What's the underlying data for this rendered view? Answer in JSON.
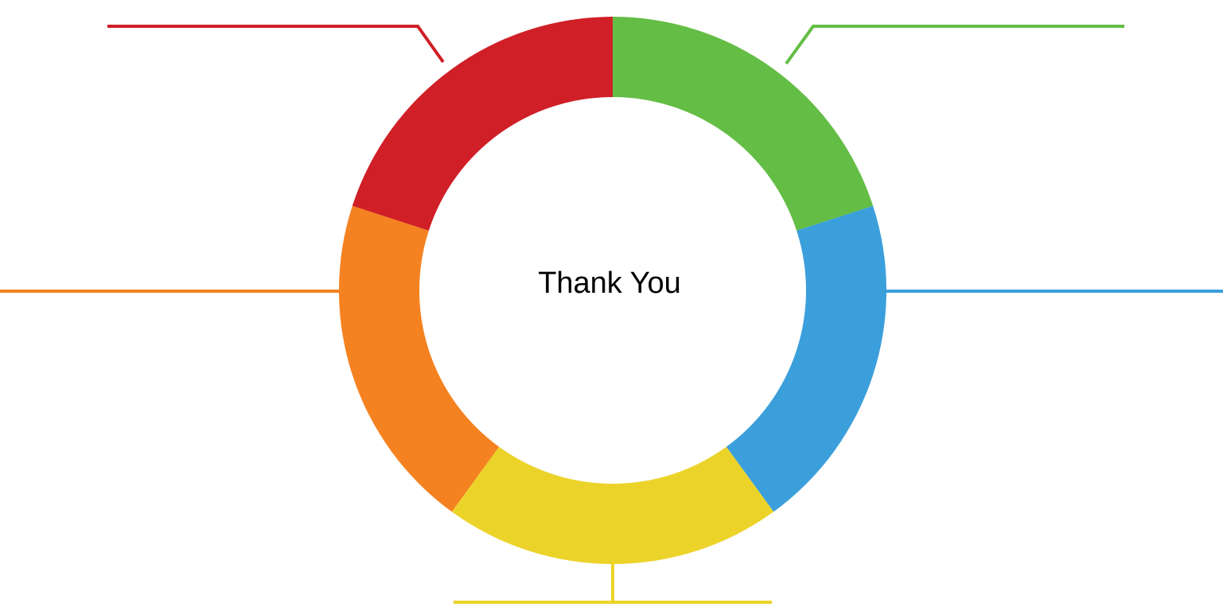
{
  "center_text": "Thank You"
}
